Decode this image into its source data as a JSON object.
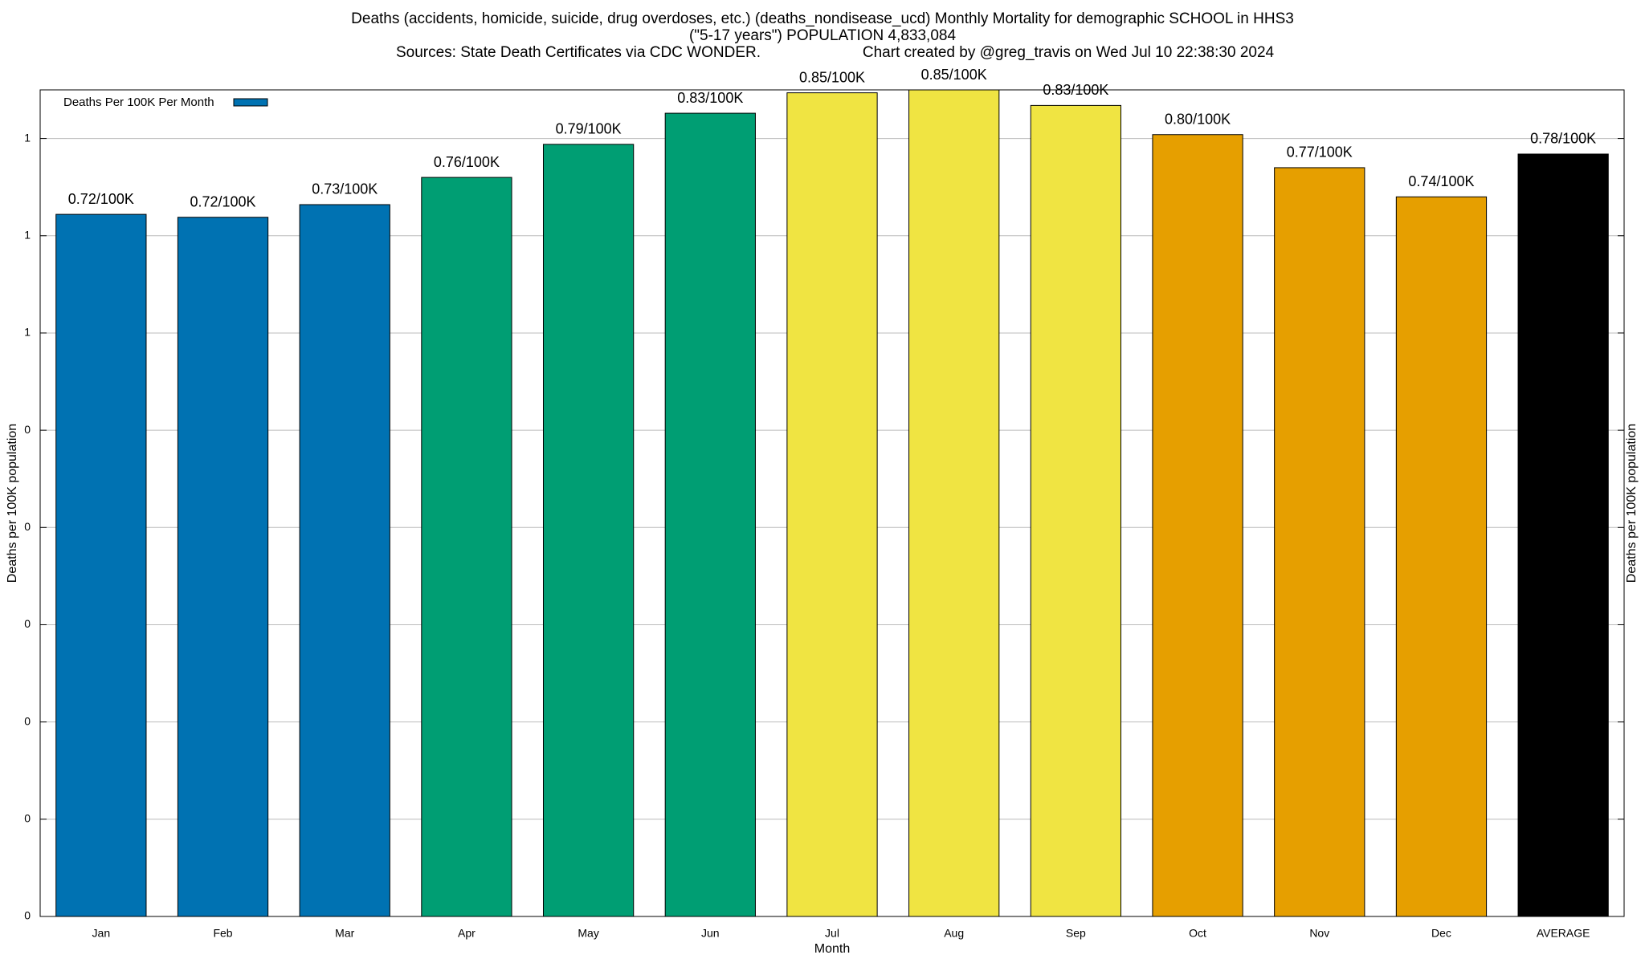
{
  "chart_data": {
    "type": "bar",
    "title": "Deaths (accidents, homicide, suicide, drug overdoses, etc.) (deaths_nondisease_ucd) Monthly Mortality for demographic SCHOOL in HHS3",
    "subtitle": "(\"5-17 years\") POPULATION 4,833,084",
    "sources": "Sources: State Death Certificates via CDC WONDER.",
    "credit": "Chart created by @greg_travis on Wed Jul 10 22:38:30 2024",
    "x_label": "Month",
    "y_label": "Deaths per 100K population",
    "y2_label": "Deaths per 100K population",
    "categories": [
      "Jan",
      "Feb",
      "Mar",
      "Apr",
      "May",
      "Jun",
      "Jul",
      "Aug",
      "Sep",
      "Oct",
      "Nov",
      "Dec",
      "AVERAGE"
    ],
    "series": [
      {
        "name": "Deaths Per 100K Per Month",
        "color": "#0072b2",
        "values": [
          0.722,
          0.719,
          0.732,
          0.76,
          0.794,
          0.826,
          0.847,
          0.85,
          0.834,
          0.804,
          0.77,
          0.74,
          0.784
        ],
        "value_labels": [
          "0.72/100K",
          "0.72/100K",
          "0.73/100K",
          "0.76/100K",
          "0.79/100K",
          "0.83/100K",
          "0.85/100K",
          "0.85/100K",
          "0.83/100K",
          "0.80/100K",
          "0.77/100K",
          "0.74/100K",
          "0.78/100K"
        ],
        "colors": [
          "#0072b2",
          "#0072b2",
          "#0072b2",
          "#009e73",
          "#009e73",
          "#009e73",
          "#f0e442",
          "#f0e442",
          "#f0e442",
          "#e69f00",
          "#e69f00",
          "#e69f00",
          "#000000"
        ]
      }
    ],
    "ylim": [
      0,
      0.85
    ],
    "yticks": [
      0,
      {
        "value": 0.1,
        "label": "0"
      },
      {
        "value": 0.2,
        "label": "0"
      },
      {
        "value": 0.3,
        "label": "0"
      },
      {
        "value": 0.4,
        "label": "0"
      },
      {
        "value": 0.5,
        "label": "0"
      },
      {
        "value": 0.6,
        "label": "1"
      },
      {
        "value": 0.7,
        "label": "1"
      },
      {
        "value": 0.8,
        "label": "1"
      }
    ],
    "grid": true,
    "legend": "top-left"
  }
}
